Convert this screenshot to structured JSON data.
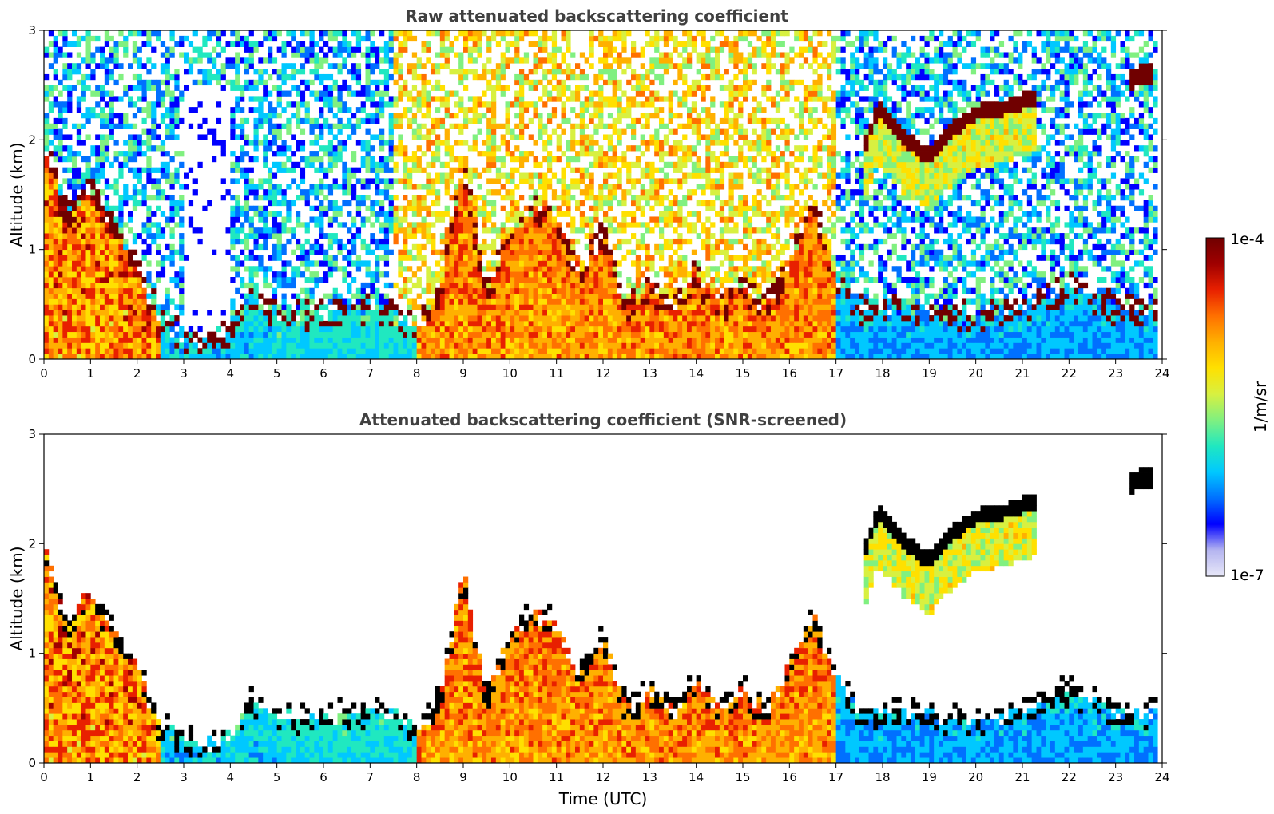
{
  "chart_data": [
    {
      "type": "heatmap",
      "title": "Raw attenuated backscattering coefficient",
      "xlabel": "",
      "ylabel": "Altitude (km)",
      "xlim": [
        0,
        24
      ],
      "ylim": [
        0,
        3
      ],
      "x_ticks": [
        "0",
        "1",
        "2",
        "3",
        "4",
        "5",
        "6",
        "7",
        "8",
        "9",
        "10",
        "11",
        "12",
        "13",
        "14",
        "15",
        "16",
        "17",
        "18",
        "19",
        "20",
        "21",
        "22",
        "23",
        "24"
      ],
      "y_ticks": [
        "0",
        "1",
        "2",
        "3"
      ],
      "color_scale": "log",
      "clim": [
        "1e-7",
        "1e-4"
      ],
      "features": {
        "boundary_layer_top_km": [
          [
            0,
            2.0
          ],
          [
            0.5,
            1.3
          ],
          [
            1.0,
            1.6
          ],
          [
            1.5,
            1.2
          ],
          [
            2.0,
            0.9
          ],
          [
            2.5,
            0.35
          ],
          [
            3.0,
            0.25
          ],
          [
            3.5,
            0.2
          ],
          [
            4.0,
            0.3
          ],
          [
            4.5,
            0.6
          ],
          [
            5.0,
            0.45
          ],
          [
            6.0,
            0.45
          ],
          [
            7.0,
            0.5
          ],
          [
            7.5,
            0.45
          ],
          [
            8.0,
            0.35
          ],
          [
            8.5,
            0.6
          ],
          [
            9.0,
            1.8
          ],
          [
            9.5,
            0.6
          ],
          [
            10.0,
            1.2
          ],
          [
            10.5,
            1.4
          ],
          [
            11.0,
            1.3
          ],
          [
            11.5,
            0.8
          ],
          [
            12.0,
            1.2
          ],
          [
            12.5,
            0.5
          ],
          [
            13.0,
            0.7
          ],
          [
            13.5,
            0.5
          ],
          [
            14.0,
            0.8
          ],
          [
            14.5,
            0.5
          ],
          [
            15.0,
            0.7
          ],
          [
            15.5,
            0.5
          ],
          [
            16.0,
            0.9
          ],
          [
            16.5,
            1.4
          ],
          [
            17.0,
            0.8
          ],
          [
            17.5,
            0.5
          ],
          [
            18.0,
            0.5
          ],
          [
            19.0,
            0.5
          ],
          [
            20.0,
            0.4
          ],
          [
            21.0,
            0.5
          ],
          [
            22.0,
            0.7
          ],
          [
            23.0,
            0.5
          ],
          [
            23.8,
            0.5
          ]
        ],
        "cloud_layer_km": [
          [
            17.6,
            1.9
          ],
          [
            17.9,
            2.3
          ],
          [
            18.5,
            2.0
          ],
          [
            19.0,
            1.85
          ],
          [
            19.5,
            2.1
          ],
          [
            20.0,
            2.25
          ],
          [
            20.5,
            2.28
          ],
          [
            21.0,
            2.35
          ],
          [
            21.3,
            2.38
          ]
        ],
        "cloud_layer_2_km": [
          [
            23.3,
            2.5
          ],
          [
            23.5,
            2.6
          ],
          [
            23.8,
            2.6
          ]
        ]
      }
    },
    {
      "type": "heatmap",
      "title": "Attenuated backscattering coefficient (SNR-screened)",
      "xlabel": "Time (UTC)",
      "ylabel": "Altitude (km)",
      "xlim": [
        0,
        24
      ],
      "ylim": [
        0,
        3
      ],
      "x_ticks": [
        "0",
        "1",
        "2",
        "3",
        "4",
        "5",
        "6",
        "7",
        "8",
        "9",
        "10",
        "11",
        "12",
        "13",
        "14",
        "15",
        "16",
        "17",
        "18",
        "19",
        "20",
        "21",
        "22",
        "23",
        "24"
      ],
      "y_ticks": [
        "0",
        "1",
        "2",
        "3"
      ],
      "color_scale": "log",
      "clim": [
        "1e-7",
        "1e-4"
      ],
      "screened": true
    }
  ],
  "colorbar": {
    "label": "1/m/sr",
    "max_label": "1e-4",
    "min_label": "1e-7",
    "colormap": [
      "#e8e8f8",
      "#b4b4f0",
      "#0000ff",
      "#0070ff",
      "#00c8ff",
      "#20e8c0",
      "#80f080",
      "#d8f040",
      "#ffe000",
      "#ffb000",
      "#ff7000",
      "#e82000",
      "#a00000",
      "#700000"
    ]
  }
}
